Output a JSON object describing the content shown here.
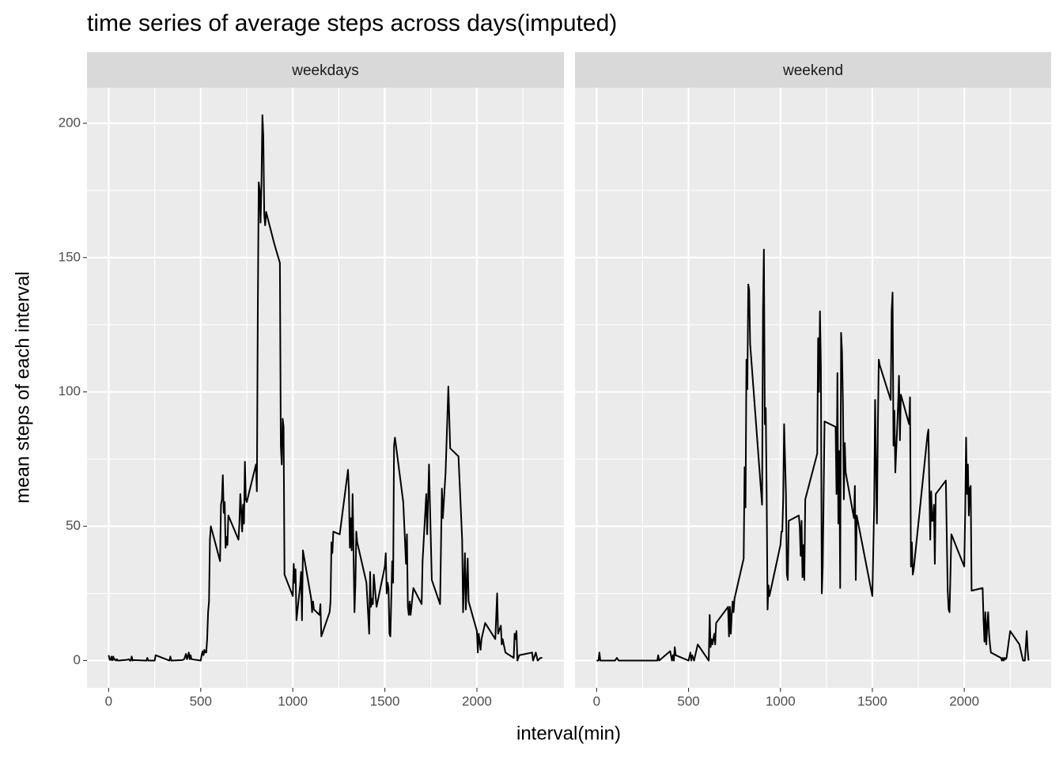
{
  "chart_data": {
    "type": "line",
    "title": "time series of average steps across days(imputed)",
    "xlabel": "interval(min)",
    "ylabel": "mean steps of each interval",
    "xlim": [
      -117.75,
      2472.75
    ],
    "ylim": [
      -10.15,
      213.2
    ],
    "xticks": [
      0,
      500,
      1000,
      1500,
      2000
    ],
    "yticks": [
      0,
      50,
      100,
      150,
      200
    ],
    "grid": true,
    "color": "#000000",
    "facets": [
      {
        "name": "weekdays",
        "x": [
          0,
          5,
          10,
          15,
          20,
          25,
          30,
          35,
          40,
          45,
          50,
          55,
          100,
          110,
          115,
          120,
          125,
          130,
          135,
          200,
          205,
          210,
          215,
          250,
          255,
          330,
          335,
          340,
          400,
          410,
          420,
          425,
          430,
          435,
          440,
          445,
          450,
          500,
          505,
          510,
          515,
          520,
          525,
          530,
          535,
          540,
          545,
          550,
          555,
          605,
          610,
          615,
          620,
          625,
          630,
          635,
          640,
          645,
          650,
          705,
          710,
          715,
          720,
          725,
          730,
          735,
          740,
          745,
          750,
          800,
          805,
          810,
          815,
          820,
          825,
          830,
          835,
          840,
          845,
          850,
          855,
          900,
          930,
          935,
          940,
          945,
          950,
          955,
          1000,
          1005,
          1010,
          1015,
          1020,
          1040,
          1045,
          1050,
          1055,
          1100,
          1105,
          1110,
          1115,
          1145,
          1150,
          1155,
          1200,
          1205,
          1210,
          1215,
          1220,
          1255,
          1300,
          1305,
          1310,
          1315,
          1320,
          1325,
          1335,
          1340,
          1345,
          1350,
          1400,
          1415,
          1420,
          1425,
          1430,
          1435,
          1440,
          1455,
          1500,
          1505,
          1510,
          1515,
          1520,
          1525,
          1530,
          1540,
          1545,
          1550,
          1555,
          1600,
          1615,
          1620,
          1625,
          1630,
          1635,
          1640,
          1655,
          1700,
          1705,
          1725,
          1730,
          1740,
          1755,
          1800,
          1810,
          1815,
          1830,
          1845,
          1855,
          1900,
          1920,
          1925,
          1935,
          1940,
          1950,
          1955,
          2000,
          2005,
          2010,
          2020,
          2025,
          2045,
          2100,
          2110,
          2115,
          2130,
          2135,
          2140,
          2155,
          2200,
          2205,
          2210,
          2215,
          2220,
          2230,
          2300,
          2305,
          2310,
          2320,
          2330,
          2345,
          2355
        ],
        "values": [
          2,
          0.4,
          0.2,
          1.5,
          0.1,
          1.5,
          0.3,
          0.5,
          0,
          0.5,
          0,
          0,
          0.3,
          0.5,
          0,
          0,
          1.5,
          0,
          0.2,
          0,
          0,
          1,
          0,
          0,
          2,
          0,
          1.5,
          0,
          0.2,
          0.5,
          2.5,
          0.5,
          1.5,
          3,
          0.5,
          2,
          0.5,
          0,
          2,
          3.5,
          2,
          4,
          3,
          3,
          8,
          18,
          22,
          45,
          50,
          37,
          58,
          60,
          69,
          55,
          59,
          42,
          46,
          43,
          54,
          45,
          51,
          62,
          56,
          48,
          58,
          51,
          74,
          60,
          59,
          73,
          63,
          130,
          178,
          175,
          163,
          178,
          203,
          195,
          166,
          162,
          167,
          155,
          148,
          80,
          73,
          90,
          87,
          32,
          24,
          36,
          29,
          34,
          15,
          28,
          33,
          15,
          41,
          23,
          18,
          22,
          19,
          17,
          21,
          9,
          18,
          22,
          44,
          40,
          48,
          47,
          71,
          63,
          42,
          53,
          41,
          62,
          18,
          28,
          48,
          44,
          29,
          10,
          33,
          20,
          23,
          21,
          32,
          20,
          35,
          40,
          25,
          29,
          27,
          10,
          9,
          37,
          29,
          80,
          83,
          59,
          36,
          47,
          20,
          17,
          22,
          17,
          27,
          21,
          37,
          62,
          47,
          73,
          30,
          21,
          64,
          53,
          70,
          102,
          79,
          76,
          45,
          18,
          40,
          19,
          38,
          22,
          11,
          3,
          10,
          4,
          8,
          14,
          8,
          25,
          10,
          13,
          6,
          8,
          3,
          1,
          10,
          8,
          11,
          0,
          2,
          3,
          0,
          1,
          3,
          0,
          1,
          1
        ]
      },
      {
        "name": "weekend",
        "x": [
          0,
          10,
          15,
          20,
          100,
          110,
          120,
          200,
          330,
          335,
          340,
          400,
          410,
          415,
          420,
          425,
          430,
          500,
          510,
          515,
          520,
          530,
          550,
          610,
          615,
          620,
          625,
          630,
          640,
          645,
          650,
          715,
          720,
          725,
          730,
          735,
          740,
          745,
          750,
          800,
          805,
          810,
          815,
          820,
          825,
          830,
          835,
          900,
          905,
          910,
          915,
          920,
          925,
          930,
          935,
          940,
          1000,
          1005,
          1010,
          1015,
          1020,
          1025,
          1030,
          1035,
          1040,
          1045,
          1100,
          1105,
          1110,
          1115,
          1120,
          1125,
          1130,
          1135,
          1200,
          1205,
          1210,
          1215,
          1220,
          1225,
          1230,
          1240,
          1300,
          1305,
          1310,
          1315,
          1320,
          1325,
          1330,
          1335,
          1340,
          1345,
          1350,
          1355,
          1400,
          1405,
          1410,
          1415,
          1500,
          1510,
          1515,
          1520,
          1525,
          1530,
          1535,
          1540,
          1600,
          1605,
          1610,
          1615,
          1620,
          1625,
          1640,
          1645,
          1650,
          1655,
          1700,
          1705,
          1710,
          1715,
          1720,
          1725,
          1800,
          1805,
          1810,
          1815,
          1820,
          1825,
          1830,
          1835,
          1840,
          1845,
          1900,
          1905,
          1910,
          1915,
          1920,
          1930,
          2000,
          2005,
          2010,
          2015,
          2020,
          2025,
          2030,
          2035,
          2040,
          2100,
          2105,
          2110,
          2115,
          2120,
          2125,
          2130,
          2135,
          2140,
          2145,
          2200,
          2205,
          2210,
          2215,
          2220,
          2225,
          2230,
          2250,
          2300,
          2320,
          2330,
          2340,
          2345,
          2350
        ],
        "values": [
          0,
          0,
          3,
          0,
          0,
          1,
          0,
          0,
          0,
          2,
          0,
          3.5,
          0,
          2,
          0,
          5,
          2,
          0,
          3,
          0,
          2,
          0,
          6,
          0,
          17,
          5,
          8,
          6,
          10,
          6,
          14,
          20,
          9,
          20,
          10,
          17,
          22,
          18,
          23,
          38,
          72,
          57,
          112,
          101,
          140,
          138,
          118,
          58,
          130,
          153,
          88,
          94,
          62,
          19,
          28,
          24,
          43,
          48,
          48,
          60,
          88,
          75,
          62,
          32,
          30,
          52,
          54,
          50,
          39,
          52,
          31,
          43,
          30,
          60,
          77,
          120,
          100,
          130,
          110,
          25,
          35,
          89,
          87,
          62,
          107,
          51,
          78,
          27,
          122,
          115,
          96,
          60,
          81,
          70,
          53,
          65,
          30,
          54,
          24,
          58,
          97,
          71,
          51,
          87,
          112,
          110,
          97,
          130,
          137,
          80,
          93,
          70,
          95,
          106,
          82,
          99,
          88,
          98,
          35,
          44,
          32,
          34,
          84,
          86,
          65,
          45,
          63,
          52,
          52,
          58,
          36,
          62,
          67,
          46,
          26,
          19,
          18,
          47,
          35,
          55,
          83,
          62,
          73,
          54,
          64,
          65,
          26,
          27,
          15,
          7,
          18,
          6,
          13,
          18,
          10,
          6,
          3,
          1,
          0,
          1,
          0,
          1,
          0.5,
          1,
          11,
          6,
          0,
          0,
          11,
          4,
          0
        ]
      }
    ]
  }
}
